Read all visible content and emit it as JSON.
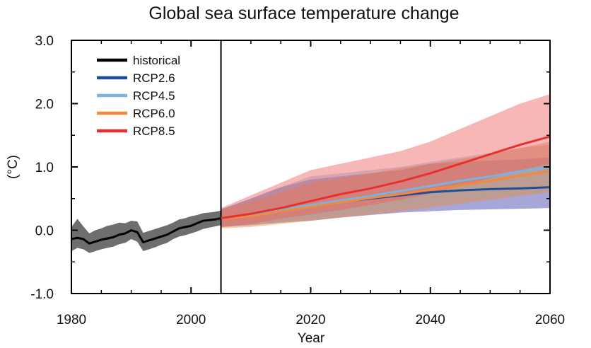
{
  "chart_data": {
    "type": "line",
    "title": "Global sea surface temperature change",
    "xlabel": "Year",
    "ylabel": "(°C)",
    "xlim": [
      1980,
      2060
    ],
    "ylim": [
      -1.0,
      3.0
    ],
    "xticks": [
      1980,
      2000,
      2020,
      2040,
      2060
    ],
    "xtick_labels": [
      "1980",
      "2000",
      "2020",
      "2040",
      "2060"
    ],
    "yticks": [
      -1.0,
      0.0,
      1.0,
      2.0,
      3.0
    ],
    "ytick_labels": [
      "-1.0",
      "0.0",
      "1.0",
      "2.0",
      "3.0"
    ],
    "divider_year": 2005,
    "legend_position": "top-left",
    "series": [
      {
        "name": "historical",
        "color": "#000000",
        "band_color": "#555555",
        "x": [
          1980,
          1981,
          1982,
          1983,
          1984,
          1985,
          1986,
          1987,
          1988,
          1989,
          1990,
          1991,
          1992,
          1993,
          1994,
          1995,
          1996,
          1997,
          1998,
          1999,
          2000,
          2001,
          2002,
          2003,
          2004,
          2005
        ],
        "values": [
          -0.14,
          -0.12,
          -0.14,
          -0.21,
          -0.18,
          -0.15,
          -0.13,
          -0.11,
          -0.07,
          -0.05,
          0.0,
          -0.03,
          -0.19,
          -0.16,
          -0.13,
          -0.1,
          -0.07,
          -0.02,
          0.03,
          0.05,
          0.07,
          0.11,
          0.15,
          0.16,
          0.17,
          0.19
        ],
        "lower": [
          -0.33,
          -0.28,
          -0.3,
          -0.36,
          -0.33,
          -0.3,
          -0.28,
          -0.26,
          -0.22,
          -0.2,
          -0.14,
          -0.18,
          -0.33,
          -0.3,
          -0.27,
          -0.23,
          -0.2,
          -0.14,
          -0.1,
          -0.08,
          -0.05,
          -0.02,
          0.02,
          0.04,
          0.06,
          0.08
        ],
        "upper": [
          0.05,
          0.18,
          0.06,
          -0.05,
          0.0,
          0.03,
          0.07,
          0.09,
          0.12,
          0.11,
          0.15,
          0.14,
          -0.04,
          -0.01,
          0.02,
          0.05,
          0.08,
          0.12,
          0.17,
          0.19,
          0.22,
          0.24,
          0.27,
          0.28,
          0.29,
          0.31
        ]
      },
      {
        "name": "RCP2.6",
        "color": "#1f4e99",
        "band_color": "#3a3aa8",
        "x": [
          2005,
          2010,
          2015,
          2020,
          2025,
          2030,
          2035,
          2040,
          2045,
          2050,
          2055,
          2060
        ],
        "values": [
          0.19,
          0.25,
          0.33,
          0.38,
          0.45,
          0.5,
          0.55,
          0.6,
          0.63,
          0.65,
          0.66,
          0.68
        ],
        "lower": [
          0.05,
          0.08,
          0.12,
          0.15,
          0.2,
          0.24,
          0.28,
          0.3,
          0.32,
          0.33,
          0.34,
          0.35
        ],
        "upper": [
          0.33,
          0.5,
          0.68,
          0.8,
          0.85,
          0.9,
          0.95,
          1.05,
          1.08,
          1.1,
          1.12,
          1.15
        ]
      },
      {
        "name": "RCP4.5",
        "color": "#7ab3e0",
        "band_color": "#7ab3e0",
        "x": [
          2005,
          2010,
          2015,
          2020,
          2025,
          2030,
          2035,
          2040,
          2045,
          2050,
          2055,
          2060
        ],
        "values": [
          0.19,
          0.24,
          0.32,
          0.4,
          0.47,
          0.54,
          0.62,
          0.7,
          0.78,
          0.85,
          0.93,
          1.0
        ],
        "lower": [
          0.05,
          0.1,
          0.15,
          0.2,
          0.25,
          0.3,
          0.36,
          0.42,
          0.47,
          0.52,
          0.57,
          0.62
        ],
        "upper": [
          0.33,
          0.5,
          0.68,
          0.85,
          0.9,
          0.95,
          1.0,
          1.08,
          1.15,
          1.22,
          1.3,
          1.35
        ]
      },
      {
        "name": "RCP6.0",
        "color": "#f08a3c",
        "band_color": "#f08a3c",
        "x": [
          2005,
          2010,
          2015,
          2020,
          2025,
          2030,
          2035,
          2040,
          2045,
          2050,
          2055,
          2060
        ],
        "values": [
          0.19,
          0.22,
          0.3,
          0.37,
          0.44,
          0.51,
          0.57,
          0.64,
          0.71,
          0.78,
          0.86,
          0.93
        ],
        "lower": [
          0.03,
          0.05,
          0.1,
          0.15,
          0.2,
          0.25,
          0.3,
          0.36,
          0.42,
          0.48,
          0.54,
          0.6
        ],
        "upper": [
          0.33,
          0.45,
          0.6,
          0.75,
          0.82,
          0.9,
          0.98,
          1.05,
          1.12,
          1.2,
          1.3,
          1.4
        ]
      },
      {
        "name": "RCP8.5",
        "color": "#e83030",
        "band_color": "#f06060",
        "x": [
          2005,
          2010,
          2015,
          2020,
          2025,
          2030,
          2035,
          2040,
          2045,
          2050,
          2055,
          2060
        ],
        "values": [
          0.19,
          0.26,
          0.35,
          0.46,
          0.57,
          0.66,
          0.77,
          0.9,
          1.05,
          1.2,
          1.35,
          1.48
        ],
        "lower": [
          0.05,
          0.1,
          0.18,
          0.25,
          0.32,
          0.4,
          0.48,
          0.58,
          0.7,
          0.82,
          0.95,
          1.05
        ],
        "upper": [
          0.35,
          0.55,
          0.75,
          0.95,
          1.05,
          1.15,
          1.25,
          1.4,
          1.6,
          1.8,
          2.0,
          2.15
        ]
      }
    ]
  }
}
